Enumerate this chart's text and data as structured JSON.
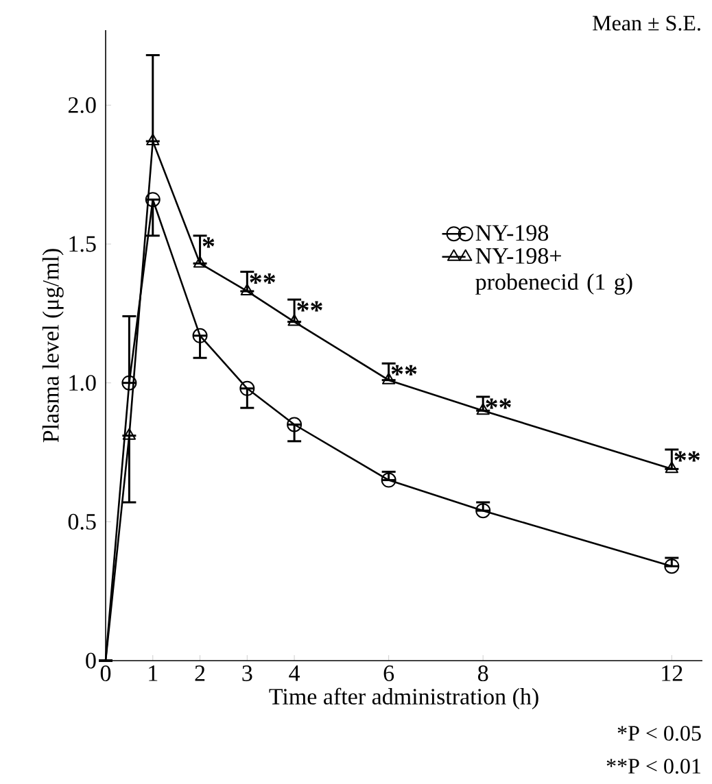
{
  "chart_data": {
    "type": "line",
    "xlabel": "Time after administration (h)",
    "ylabel": "Plasma level (μg/ml)",
    "x": [
      0,
      0.5,
      1,
      2,
      3,
      4,
      6,
      8,
      12
    ],
    "series": [
      {
        "name": "NY-198",
        "color": "#000000",
        "marker": "circle",
        "values": [
          0,
          1.0,
          1.66,
          1.17,
          0.98,
          0.85,
          0.65,
          0.54,
          0.34
        ],
        "errors": [
          null,
          [
            1.0,
            1.24
          ],
          [
            1.53,
            1.66
          ],
          [
            1.09,
            1.17
          ],
          [
            0.91,
            0.98
          ],
          [
            0.79,
            0.85
          ],
          [
            0.65,
            0.68
          ],
          [
            0.54,
            0.57
          ],
          [
            0.34,
            0.37
          ]
        ]
      },
      {
        "name": "NY-198+ probenecid (1 g)",
        "color": "#000000",
        "marker": "triangle",
        "values": [
          0,
          0.81,
          1.87,
          1.43,
          1.33,
          1.22,
          1.01,
          0.9,
          0.69
        ],
        "errors": [
          null,
          [
            0.57,
            0.81
          ],
          [
            1.87,
            2.18
          ],
          [
            1.43,
            1.53
          ],
          [
            1.33,
            1.4
          ],
          [
            1.22,
            1.3
          ],
          [
            1.01,
            1.07
          ],
          [
            0.9,
            0.95
          ],
          [
            0.69,
            0.76
          ]
        ]
      }
    ],
    "xlim": [
      0,
      12.65
    ],
    "xticks": [
      0,
      1,
      2,
      3,
      4,
      6,
      8,
      12
    ],
    "ylim": [
      0,
      2.27
    ],
    "yticks": [
      0,
      0.5,
      {
        "value": 1.0,
        "label": "1.0"
      },
      1.5,
      {
        "value": 2.0,
        "label": "2.0"
      }
    ],
    "grid": false,
    "legend": "top right",
    "annotations": [
      "Mean ± S.E.",
      {
        "text": "*",
        "x": 2,
        "y": 1.53
      },
      {
        "text": "**",
        "x": 3,
        "y": 1.4
      },
      {
        "text": "**",
        "x": 4,
        "y": 1.3
      },
      {
        "text": "**",
        "x": 6,
        "y": 1.07
      },
      {
        "text": "**",
        "x": 8,
        "y": 0.95
      },
      {
        "text": "**",
        "x": 12,
        "y": 0.76
      },
      "*P < 0.05",
      "**P < 0.01"
    ]
  }
}
